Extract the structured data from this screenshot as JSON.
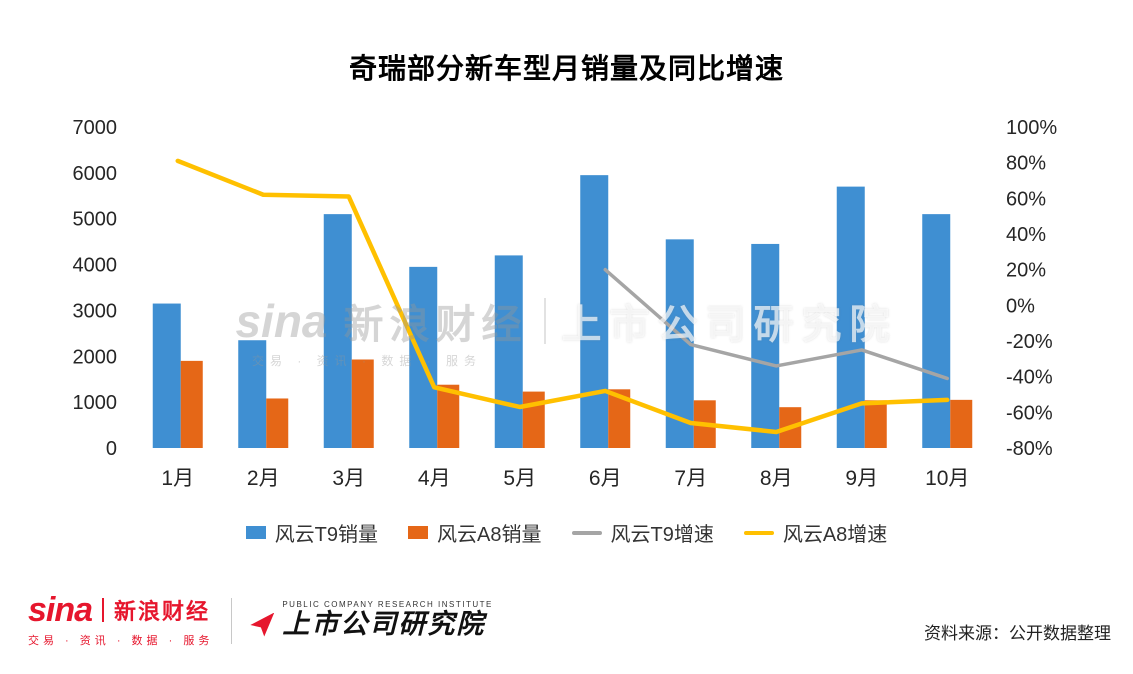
{
  "title": "奇瑞部分新车型月销量及同比增速",
  "colors": {
    "t9_bar": "#3f8fd2",
    "a8_bar": "#e56717",
    "t9_line": "#a5a5a5",
    "a8_line": "#ffc000",
    "brand_red": "#e6162d"
  },
  "watermark": {
    "brand": "sina",
    "brand_cn": "新浪财经",
    "institute": "上市公司研究院",
    "tagline": "交易 · 资讯 · 数据 · 服务"
  },
  "footer": {
    "sina_logo": "sina",
    "sina_name": "新浪财经",
    "sina_tagline": "交易 · 资讯 · 数据 · 服务",
    "institute_en": "PUBLIC COMPANY RESEARCH INSTITUTE",
    "institute_name": "上市公司研究院",
    "source": "资料来源：公开数据整理"
  },
  "chart_data": {
    "type": "bar",
    "subtype": "combo-bar-line-dual-axis",
    "title": "奇瑞部分新车型月销量及同比增速",
    "categories": [
      "1月",
      "2月",
      "3月",
      "4月",
      "5月",
      "6月",
      "7月",
      "8月",
      "9月",
      "10月"
    ],
    "bar_series": [
      {
        "name": "风云T9销量",
        "color": "#3f8fd2",
        "axis": "left",
        "values": [
          3150,
          2350,
          5100,
          3950,
          4200,
          5950,
          4550,
          4450,
          5700,
          5100
        ]
      },
      {
        "name": "风云A8销量",
        "color": "#e56717",
        "axis": "left",
        "values": [
          1900,
          1080,
          1930,
          1380,
          1230,
          1280,
          1040,
          890,
          1040,
          1050
        ]
      }
    ],
    "line_series": [
      {
        "name": "风云T9增速",
        "color": "#a5a5a5",
        "axis": "right",
        "values": [
          null,
          null,
          null,
          null,
          null,
          20,
          -22,
          -34,
          -25,
          -41
        ]
      },
      {
        "name": "风云A8增速",
        "color": "#ffc000",
        "axis": "right",
        "values": [
          81,
          62,
          61,
          -46,
          -57,
          -48,
          -66,
          -71,
          -55,
          -53
        ]
      }
    ],
    "left_axis": {
      "min": 0,
      "max": 7000,
      "step": 1000
    },
    "right_axis": {
      "min": -80,
      "max": 100,
      "step": 20,
      "suffix": "%"
    },
    "grid": false,
    "legend_position": "bottom"
  }
}
